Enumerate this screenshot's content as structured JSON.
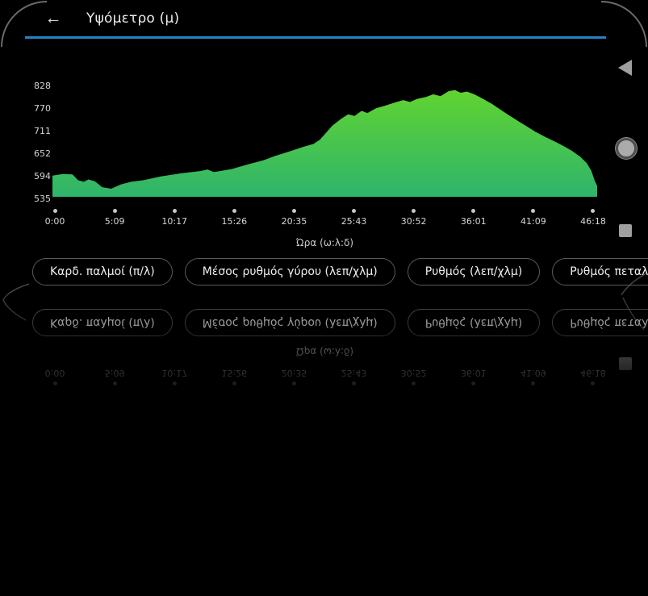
{
  "app": {
    "title": "Υψόμετρο (μ)",
    "back_icon": "←",
    "accent_color": "#2583c6"
  },
  "chart_data": {
    "type": "area",
    "title": "Υψόμετρο (μ)",
    "xlabel": "Ώρα (ω:λ:δ)",
    "ylabel": "Υψόμετρο (μ)",
    "y_ticks": [
      828,
      770,
      711,
      652,
      594,
      535
    ],
    "x_ticks": [
      "0:00",
      "5:09",
      "10:17",
      "15:26",
      "20:35",
      "25:43",
      "30:52",
      "36:01",
      "41:09",
      "46:18"
    ],
    "ylim": [
      535,
      853
    ],
    "xlim_seconds": [
      0,
      2778
    ],
    "grid": false,
    "fill_gradient_top": "#61d430",
    "fill_gradient_bottom": "#2eb46c",
    "series": [
      {
        "name": "Υψόμετρο",
        "t_seconds": [
          0,
          53,
          102,
          131,
          160,
          184,
          217,
          254,
          299,
          348,
          401,
          463,
          553,
          656,
          758,
          791,
          823,
          914,
          996,
          1078,
          1135,
          1217,
          1282,
          1331,
          1364,
          1393,
          1426,
          1471,
          1508,
          1541,
          1577,
          1606,
          1651,
          1700,
          1749,
          1790,
          1823,
          1860,
          1905,
          1942,
          1979,
          2020,
          2053,
          2081,
          2114,
          2151,
          2196,
          2241,
          2282,
          2327,
          2376,
          2421,
          2462,
          2511,
          2560,
          2605,
          2650,
          2691,
          2724,
          2748,
          2765,
          2778
        ],
        "elev_m": [
          590,
          594,
          593,
          578,
          574,
          580,
          575,
          560,
          556,
          567,
          574,
          578,
          588,
          596,
          602,
          606,
          599,
          607,
          619,
          630,
          641,
          654,
          665,
          672,
          683,
          700,
          719,
          737,
          749,
          745,
          758,
          752,
          765,
          772,
          780,
          786,
          781,
          789,
          794,
          801,
          796,
          809,
          812,
          805,
          808,
          801,
          789,
          776,
          762,
          747,
          731,
          717,
          704,
          691,
          679,
          667,
          654,
          639,
          623,
          603,
          578,
          563
        ]
      }
    ]
  },
  "chips": [
    {
      "label": "Καρδ. παλμοί (π/λ)"
    },
    {
      "label": "Μέσος ρυθμός γύρου (λεπ/χλμ)"
    },
    {
      "label": "Ρυθμός (λεπ/χλμ)"
    },
    {
      "label": "Ρυθμός πεταλιάς"
    }
  ],
  "nav": {
    "back_icon": "triangle-left",
    "home_icon": "circle",
    "recents_icon": "square",
    "color": "#9f9f9f"
  }
}
